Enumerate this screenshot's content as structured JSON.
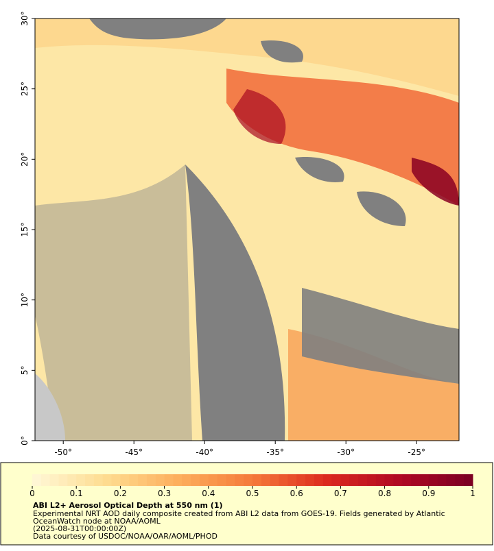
{
  "chart_data": {
    "type": "map",
    "title": "ABI L2+ Aerosol Optical Depth at 550 nm (1)",
    "description": [
      "Experimental NRT AOD daily composite created from ABI L2 data from GOES-19. Fields generated by Atlantic",
      "OceanWatch node at NOAA/AOML",
      "(2025-08-31T00:00:00Z)",
      "Data courtesy of USDOC/NOAA/OAR/AOML/PHOD"
    ],
    "xlim": [
      -52,
      -22
    ],
    "ylim": [
      0,
      30
    ],
    "xticks": [
      {
        "value": -50,
        "label": "-50°"
      },
      {
        "value": -45,
        "label": "-45°"
      },
      {
        "value": -40,
        "label": "-40°"
      },
      {
        "value": -35,
        "label": "-35°"
      },
      {
        "value": -30,
        "label": "-30°"
      },
      {
        "value": -25,
        "label": "-25°"
      }
    ],
    "yticks": [
      {
        "value": 0,
        "label": "0°"
      },
      {
        "value": 5,
        "label": "5°"
      },
      {
        "value": 10,
        "label": "10°"
      },
      {
        "value": 15,
        "label": "15°"
      },
      {
        "value": 20,
        "label": "20°"
      },
      {
        "value": 25,
        "label": "25°"
      },
      {
        "value": 30,
        "label": "30°"
      }
    ],
    "colorbar": {
      "lim": [
        0,
        1
      ],
      "ticks": [
        0,
        0.1,
        0.2,
        0.3,
        0.4,
        0.5,
        0.6,
        0.7,
        0.8,
        0.9,
        1
      ],
      "colors": [
        "#fff8d8",
        "#fedc90",
        "#fdae5c",
        "#f57a3a",
        "#dc2a1e",
        "#b00822",
        "#7a0022"
      ]
    }
  }
}
